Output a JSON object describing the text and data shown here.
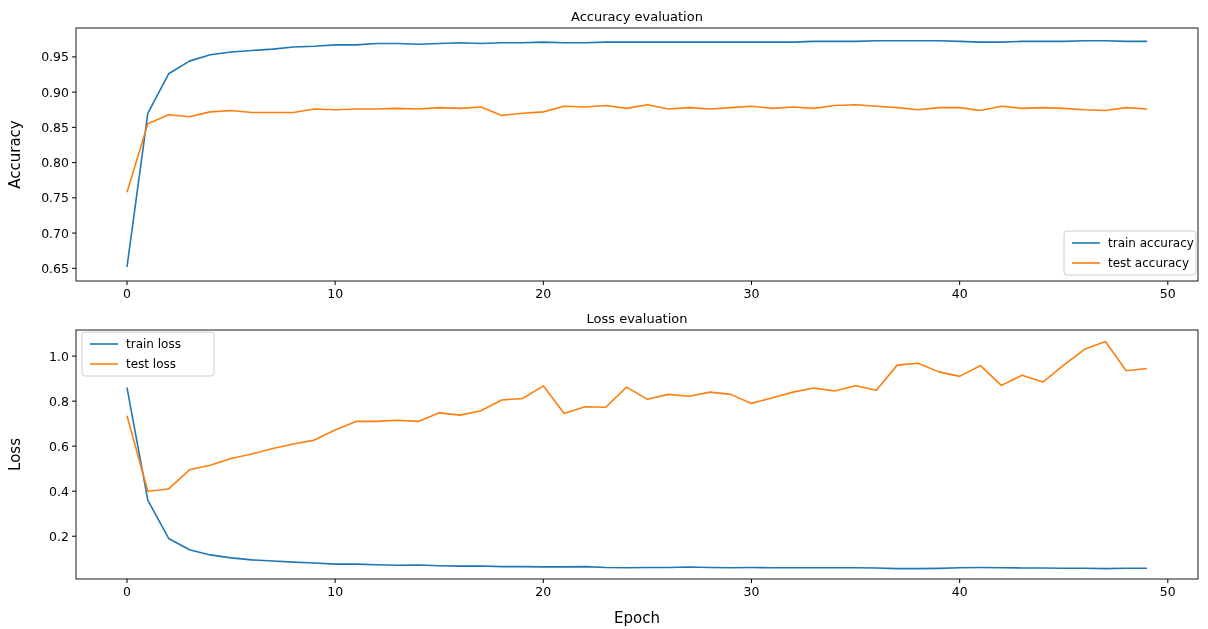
{
  "chart_data": [
    {
      "type": "line",
      "title": "Accuracy evaluation",
      "ylabel": "Accuracy",
      "x": [
        0,
        1,
        2,
        3,
        4,
        5,
        6,
        7,
        8,
        9,
        10,
        11,
        12,
        13,
        14,
        15,
        16,
        17,
        18,
        19,
        20,
        21,
        22,
        23,
        24,
        25,
        26,
        27,
        28,
        29,
        30,
        31,
        32,
        33,
        34,
        35,
        36,
        37,
        38,
        39,
        40,
        41,
        42,
        43,
        44,
        45,
        46,
        47,
        48,
        49
      ],
      "series": [
        {
          "name": "train accuracy",
          "color": "#1f77b4",
          "values": [
            0.652,
            0.87,
            0.926,
            0.944,
            0.953,
            0.957,
            0.959,
            0.961,
            0.964,
            0.965,
            0.967,
            0.967,
            0.969,
            0.969,
            0.968,
            0.969,
            0.97,
            0.969,
            0.97,
            0.97,
            0.971,
            0.97,
            0.97,
            0.971,
            0.971,
            0.971,
            0.971,
            0.971,
            0.971,
            0.971,
            0.971,
            0.971,
            0.971,
            0.972,
            0.972,
            0.972,
            0.973,
            0.973,
            0.973,
            0.973,
            0.972,
            0.971,
            0.971,
            0.972,
            0.972,
            0.972,
            0.973,
            0.973,
            0.972,
            0.972
          ]
        },
        {
          "name": "test accuracy",
          "color": "#ff7f0e",
          "values": [
            0.758,
            0.855,
            0.868,
            0.865,
            0.872,
            0.874,
            0.871,
            0.871,
            0.871,
            0.876,
            0.875,
            0.876,
            0.876,
            0.877,
            0.876,
            0.878,
            0.877,
            0.879,
            0.867,
            0.87,
            0.872,
            0.88,
            0.879,
            0.881,
            0.877,
            0.882,
            0.876,
            0.878,
            0.876,
            0.878,
            0.88,
            0.877,
            0.879,
            0.877,
            0.881,
            0.882,
            0.88,
            0.878,
            0.875,
            0.878,
            0.878,
            0.874,
            0.88,
            0.877,
            0.878,
            0.877,
            0.875,
            0.874,
            0.878,
            0.876
          ]
        }
      ],
      "xlim": [
        -2.45,
        51.45
      ],
      "xticks": [
        0,
        10,
        20,
        30,
        40,
        50
      ],
      "ylim": [
        0.632,
        0.991
      ],
      "yticks": [
        {
          "value": 0.65,
          "label": "0.65"
        },
        {
          "value": 0.7,
          "label": "0.70"
        },
        {
          "value": 0.75,
          "label": "0.75"
        },
        {
          "value": 0.8,
          "label": "0.80"
        },
        {
          "value": 0.85,
          "label": "0.85"
        },
        {
          "value": 0.9,
          "label": "0.90"
        },
        {
          "value": 0.95,
          "label": "0.95"
        }
      ],
      "legend": "bottom right",
      "grid": false
    },
    {
      "type": "line",
      "title": "Loss evaluation",
      "xlabel": "Epoch",
      "ylabel": "Loss",
      "x": [
        0,
        1,
        2,
        3,
        4,
        5,
        6,
        7,
        8,
        9,
        10,
        11,
        12,
        13,
        14,
        15,
        16,
        17,
        18,
        19,
        20,
        21,
        22,
        23,
        24,
        25,
        26,
        27,
        28,
        29,
        30,
        31,
        32,
        33,
        34,
        35,
        36,
        37,
        38,
        39,
        40,
        41,
        42,
        43,
        44,
        45,
        46,
        47,
        48,
        49
      ],
      "series": [
        {
          "name": "train loss",
          "color": "#1f77b4",
          "values": [
            0.86,
            0.36,
            0.19,
            0.14,
            0.117,
            0.104,
            0.095,
            0.09,
            0.085,
            0.081,
            0.076,
            0.076,
            0.073,
            0.071,
            0.072,
            0.069,
            0.067,
            0.068,
            0.065,
            0.065,
            0.064,
            0.064,
            0.065,
            0.061,
            0.06,
            0.061,
            0.061,
            0.063,
            0.061,
            0.06,
            0.061,
            0.06,
            0.06,
            0.06,
            0.06,
            0.06,
            0.059,
            0.056,
            0.056,
            0.057,
            0.06,
            0.061,
            0.06,
            0.059,
            0.059,
            0.058,
            0.058,
            0.056,
            0.058,
            0.058
          ]
        },
        {
          "name": "test loss",
          "color": "#ff7f0e",
          "values": [
            0.735,
            0.4,
            0.41,
            0.495,
            0.515,
            0.545,
            0.565,
            0.59,
            0.61,
            0.627,
            0.672,
            0.71,
            0.71,
            0.715,
            0.71,
            0.748,
            0.738,
            0.757,
            0.805,
            0.812,
            0.868,
            0.745,
            0.775,
            0.773,
            0.862,
            0.808,
            0.83,
            0.822,
            0.84,
            0.83,
            0.79,
            0.815,
            0.84,
            0.858,
            0.845,
            0.868,
            0.848,
            0.96,
            0.968,
            0.93,
            0.91,
            0.958,
            0.87,
            0.915,
            0.885,
            0.96,
            1.03,
            1.065,
            0.935,
            0.945
          ]
        }
      ],
      "xlim": [
        -2.45,
        51.45
      ],
      "xticks": [
        0,
        10,
        20,
        30,
        40,
        50
      ],
      "ylim": [
        0.01,
        1.116
      ],
      "yticks": [
        {
          "value": 0.2,
          "label": "0.2"
        },
        {
          "value": 0.4,
          "label": "0.4"
        },
        {
          "value": 0.6,
          "label": "0.6"
        },
        {
          "value": 0.8,
          "label": "0.8"
        },
        {
          "value": 1.0,
          "label": "1.0"
        }
      ],
      "legend": "top left",
      "grid": false
    }
  ]
}
